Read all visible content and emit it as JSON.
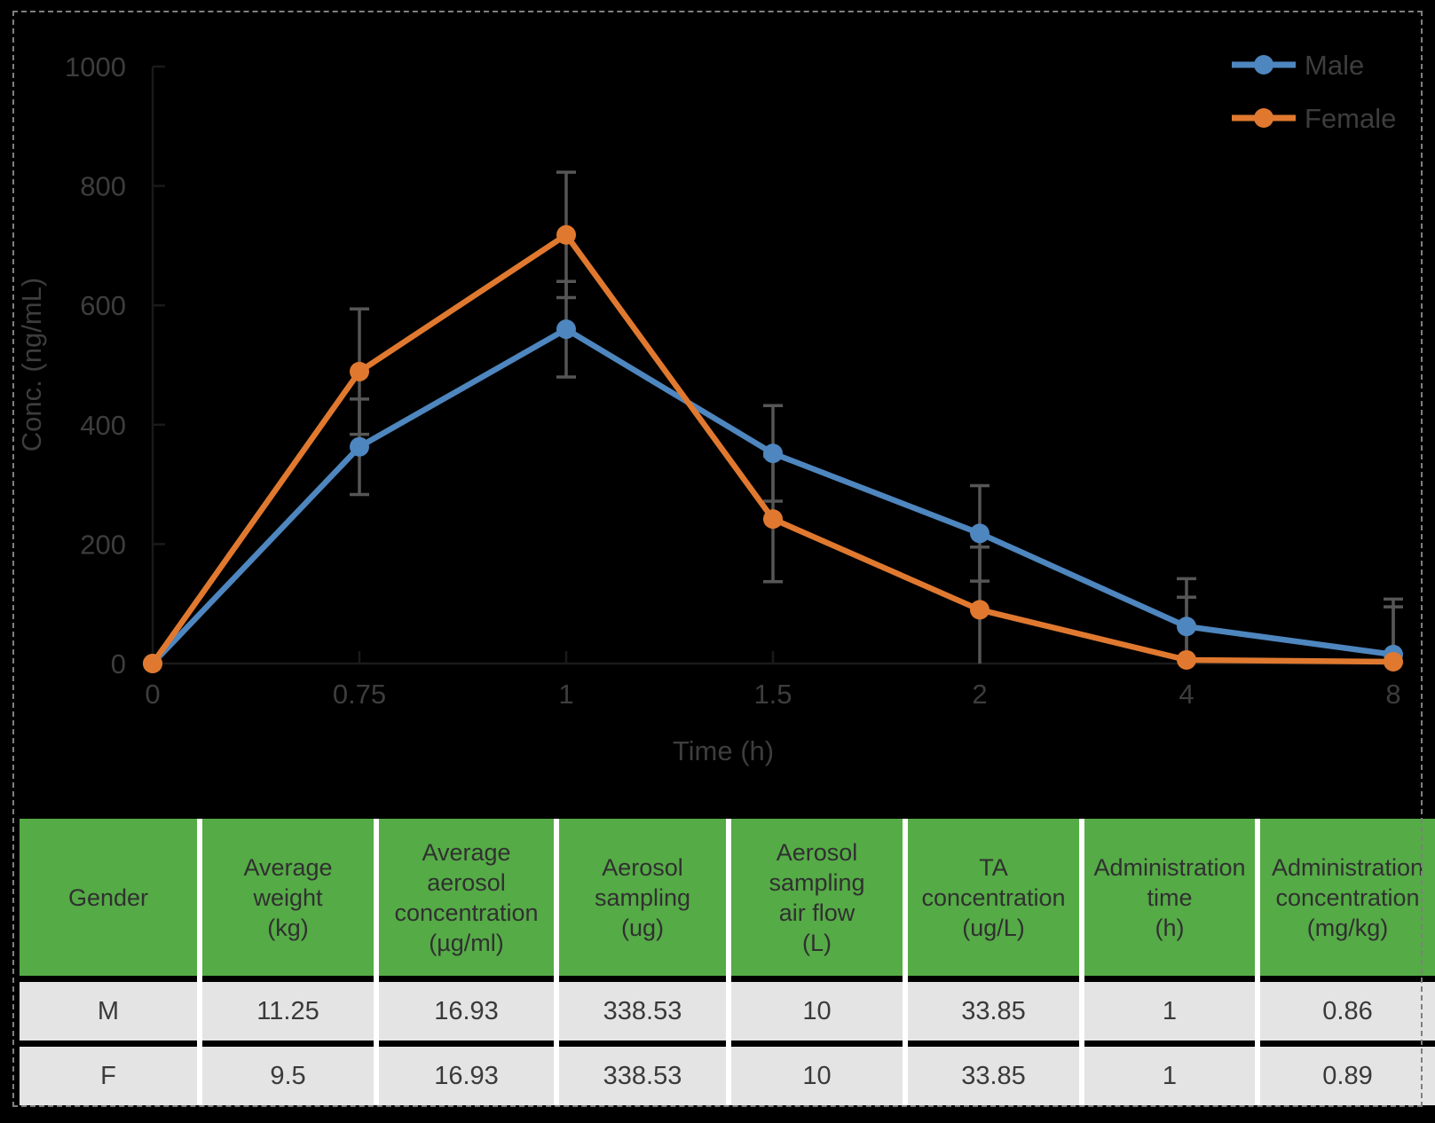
{
  "figure": {
    "background_color": "#000000",
    "frame_color": "#7f7f7f"
  },
  "chart_data": {
    "type": "line",
    "title": "",
    "xlabel": "Time (h)",
    "ylabel": "Conc. (ng/mL)",
    "x_axis_type": "categorical",
    "categories": [
      "0",
      "0.75",
      "1",
      "1.5",
      "2",
      "4",
      "8"
    ],
    "yticks": [
      0,
      200,
      400,
      600,
      800,
      1000
    ],
    "ylim": [
      0,
      1000
    ],
    "grid": false,
    "legend_position": "top-right",
    "error_bars": true,
    "series": [
      {
        "name": "Male",
        "color": "#4E86BF",
        "values": [
          0,
          363,
          560,
          352,
          218,
          62,
          15
        ],
        "errors": [
          0,
          80,
          80,
          80,
          80,
          80,
          80
        ]
      },
      {
        "name": "Female",
        "color": "#E0792F",
        "values": [
          0,
          489,
          718,
          242,
          90,
          6,
          3
        ],
        "errors": [
          0,
          105,
          105,
          105,
          105,
          105,
          105
        ]
      }
    ],
    "colors": {
      "axis": "#1a1a1a",
      "text": "#3d3d3d",
      "error_bar": "#565656"
    }
  },
  "table": {
    "header_bg": "#55AB46",
    "row_bg": "#E4E4E4",
    "headers": [
      "Gender",
      "Average\nweight\n(kg)",
      "Average\naerosol\nconcentration\n(µg/ml)",
      "Aerosol\nsampling\n(ug)",
      "Aerosol\nsampling\nair flow\n(L)",
      "TA\nconcentration\n(ug/L)",
      "Administration\ntime\n(h)",
      "Administration\nconcentration\n(mg/kg)"
    ],
    "rows": [
      [
        "M",
        "11.25",
        "16.93",
        "338.53",
        "10",
        "33.85",
        "1",
        "0.86"
      ],
      [
        "F",
        "9.5",
        "16.93",
        "338.53",
        "10",
        "33.85",
        "1",
        "0.89"
      ]
    ]
  }
}
